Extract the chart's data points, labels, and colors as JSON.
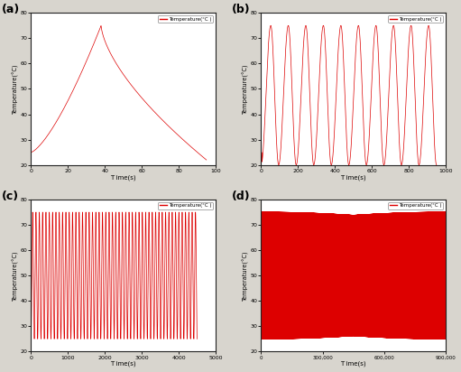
{
  "title_a": "(a)",
  "title_b": "(b)",
  "title_c": "(c)",
  "title_d": "(d)",
  "legend_label": "Temperature(°C )",
  "ylabel": "Temperature(°C)",
  "xlabel": "T ime(s)",
  "line_color": "#dd0000",
  "ax_facecolor": "#ffffff",
  "fig_facecolor": "#d8d5ce",
  "ylim": [
    20,
    80
  ],
  "yticks": [
    20,
    30,
    40,
    50,
    60,
    70,
    80
  ],
  "a_xlim": [
    0,
    100
  ],
  "a_xticks": [
    0,
    20,
    40,
    60,
    80,
    100
  ],
  "b_xlim": [
    0,
    1000
  ],
  "b_xticks": [
    0,
    200,
    400,
    600,
    800,
    1000
  ],
  "c_xlim": [
    0,
    5000
  ],
  "c_xticks": [
    0,
    1000,
    2000,
    3000,
    4000,
    5000
  ],
  "d_xlim": [
    0,
    900000
  ],
  "d_xticks": [
    0,
    300000,
    600000,
    900000
  ]
}
